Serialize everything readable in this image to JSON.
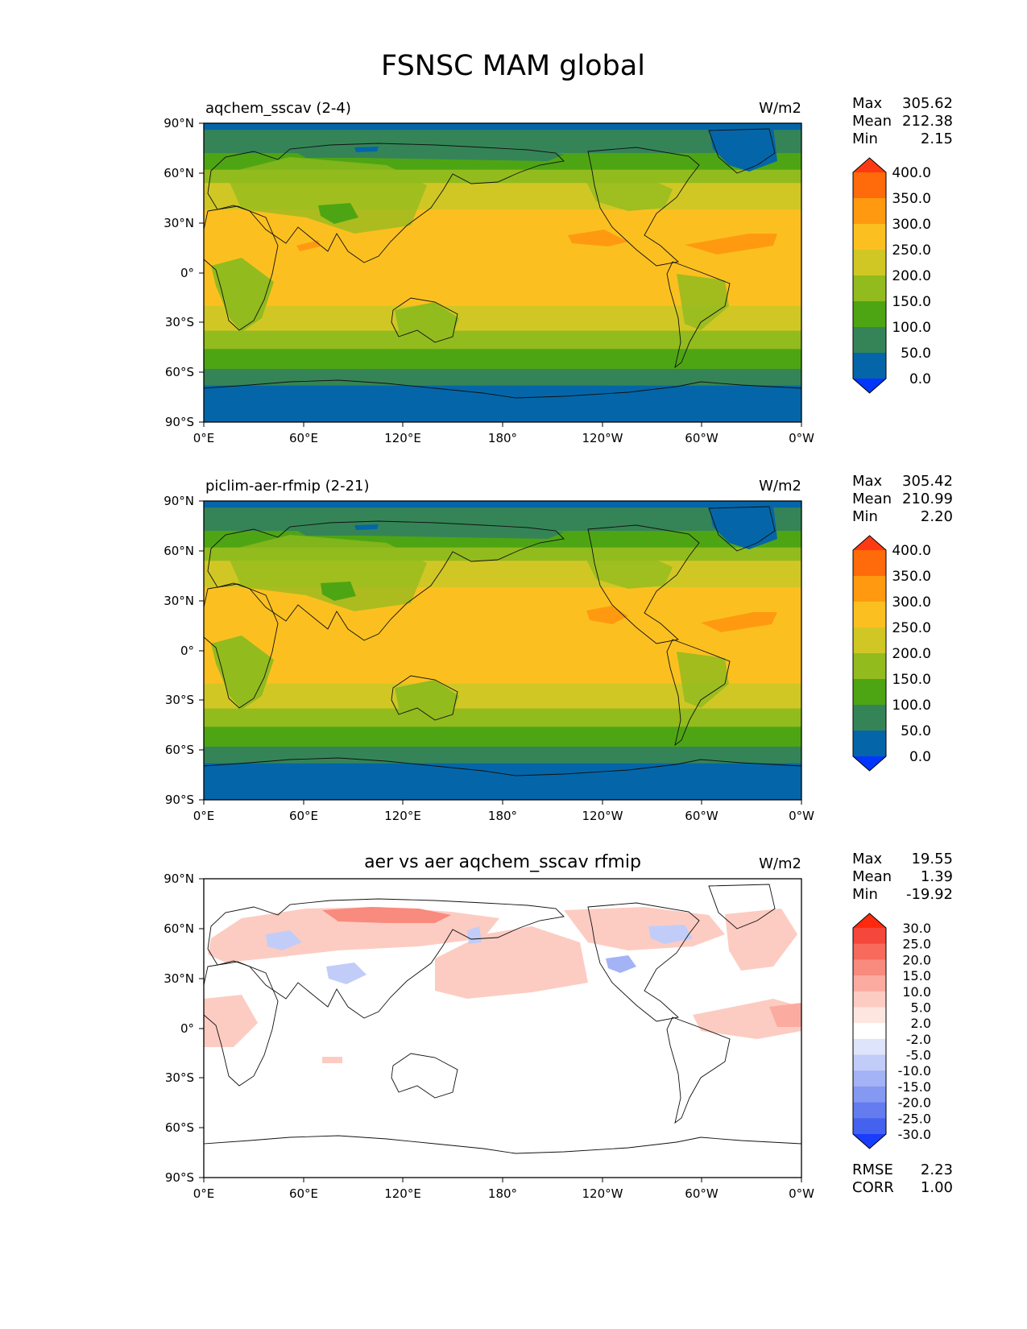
{
  "figure": {
    "title": "FSNSC MAM global"
  },
  "chart_data": [
    {
      "type": "heatmap",
      "title": "aqchem_sscav (2-4)",
      "units": "W/m2",
      "stats": {
        "labels": [
          "Max",
          "Mean",
          "Min"
        ],
        "values": [
          "305.62",
          "212.38",
          "2.15"
        ]
      },
      "colorbar": {
        "levels": [
          "400.0",
          "350.0",
          "300.0",
          "250.0",
          "200.0",
          "150.0",
          "100.0",
          "50.0",
          "0.0"
        ],
        "colors": [
          "#ff3a12",
          "#ff6a0a",
          "#ff9a10",
          "#fbc020",
          "#d0c725",
          "#92bb1e",
          "#4ea514",
          "#358457",
          "#0466a8",
          "#0236fd"
        ]
      },
      "x_ticks": [
        "0°E",
        "60°E",
        "120°E",
        "180°",
        "120°W",
        "60°W",
        "0°W"
      ],
      "y_ticks": [
        "90°N",
        "60°N",
        "30°N",
        "0°",
        "30°S",
        "60°S",
        "90°S"
      ],
      "zonal_bands": [
        {
          "lat": [
            90,
            86
          ],
          "value": 40
        },
        {
          "lat": [
            86,
            80
          ],
          "value": 90
        },
        {
          "lat": [
            80,
            72
          ],
          "value": 90
        },
        {
          "lat": [
            72,
            62
          ],
          "value": 125
        },
        {
          "lat": [
            62,
            54
          ],
          "value": 175
        },
        {
          "lat": [
            54,
            46
          ],
          "value": 225
        },
        {
          "lat": [
            46,
            38
          ],
          "value": 225
        },
        {
          "lat": [
            38,
            -20
          ],
          "value": 275
        },
        {
          "lat": [
            -20,
            -35
          ],
          "value": 225
        },
        {
          "lat": [
            -35,
            -46
          ],
          "value": 175
        },
        {
          "lat": [
            -46,
            -58
          ],
          "value": 125
        },
        {
          "lat": [
            -58,
            -68
          ],
          "value": 90
        },
        {
          "lat": [
            -68,
            -90
          ],
          "value": 40
        }
      ]
    },
    {
      "type": "heatmap",
      "title": "piclim-aer-rfmip (2-21)",
      "units": "W/m2",
      "stats": {
        "labels": [
          "Max",
          "Mean",
          "Min"
        ],
        "values": [
          "305.42",
          "210.99",
          "2.20"
        ]
      },
      "colorbar": {
        "levels": [
          "400.0",
          "350.0",
          "300.0",
          "250.0",
          "200.0",
          "150.0",
          "100.0",
          "50.0",
          "0.0"
        ],
        "colors": [
          "#ff3a12",
          "#ff6a0a",
          "#ff9a10",
          "#fbc020",
          "#d0c725",
          "#92bb1e",
          "#4ea514",
          "#358457",
          "#0466a8",
          "#0236fd"
        ]
      },
      "x_ticks": [
        "0°E",
        "60°E",
        "120°E",
        "180°",
        "120°W",
        "60°W",
        "0°W"
      ],
      "y_ticks": [
        "90°N",
        "60°N",
        "30°N",
        "0°",
        "30°S",
        "60°S",
        "90°S"
      ],
      "zonal_bands": [
        {
          "lat": [
            90,
            86
          ],
          "value": 40
        },
        {
          "lat": [
            86,
            80
          ],
          "value": 90
        },
        {
          "lat": [
            80,
            72
          ],
          "value": 90
        },
        {
          "lat": [
            72,
            62
          ],
          "value": 125
        },
        {
          "lat": [
            62,
            54
          ],
          "value": 175
        },
        {
          "lat": [
            54,
            46
          ],
          "value": 225
        },
        {
          "lat": [
            46,
            38
          ],
          "value": 225
        },
        {
          "lat": [
            38,
            -20
          ],
          "value": 275
        },
        {
          "lat": [
            -20,
            -35
          ],
          "value": 225
        },
        {
          "lat": [
            -35,
            -46
          ],
          "value": 175
        },
        {
          "lat": [
            -46,
            -58
          ],
          "value": 125
        },
        {
          "lat": [
            -58,
            -68
          ],
          "value": 90
        },
        {
          "lat": [
            -68,
            -90
          ],
          "value": 40
        }
      ]
    },
    {
      "type": "heatmap",
      "title": "aer vs aer aqchem_sscav rfmip",
      "units": "W/m2",
      "stats": {
        "labels": [
          "Max",
          "Mean",
          "Min"
        ],
        "values": [
          "19.55",
          "1.39",
          "-19.92"
        ]
      },
      "colorbar": {
        "levels": [
          "30.0",
          "25.0",
          "20.0",
          "15.0",
          "10.0",
          "5.0",
          "2.0",
          "-2.0",
          "-5.0",
          "-10.0",
          "-15.0",
          "-20.0",
          "-25.0",
          "-30.0"
        ],
        "colors": [
          "#ff2a0e",
          "#f5473c",
          "#f76a5c",
          "#f98a7e",
          "#fbaba0",
          "#fcccc2",
          "#fee6e0",
          "#ffffff",
          "#dde4fb",
          "#c1cdf8",
          "#a3b3f5",
          "#8598f2",
          "#647cf0",
          "#4462ee",
          "#1a3cfc"
        ]
      },
      "x_ticks": [
        "0°E",
        "60°E",
        "120°E",
        "180°",
        "120°W",
        "60°W",
        "0°W"
      ],
      "y_ticks": [
        "90°N",
        "60°N",
        "30°N",
        "0°",
        "30°S",
        "60°S",
        "90°S"
      ],
      "extra_stats": {
        "labels": [
          "RMSE",
          "CORR"
        ],
        "values": [
          "2.23",
          "1.00"
        ]
      }
    }
  ]
}
